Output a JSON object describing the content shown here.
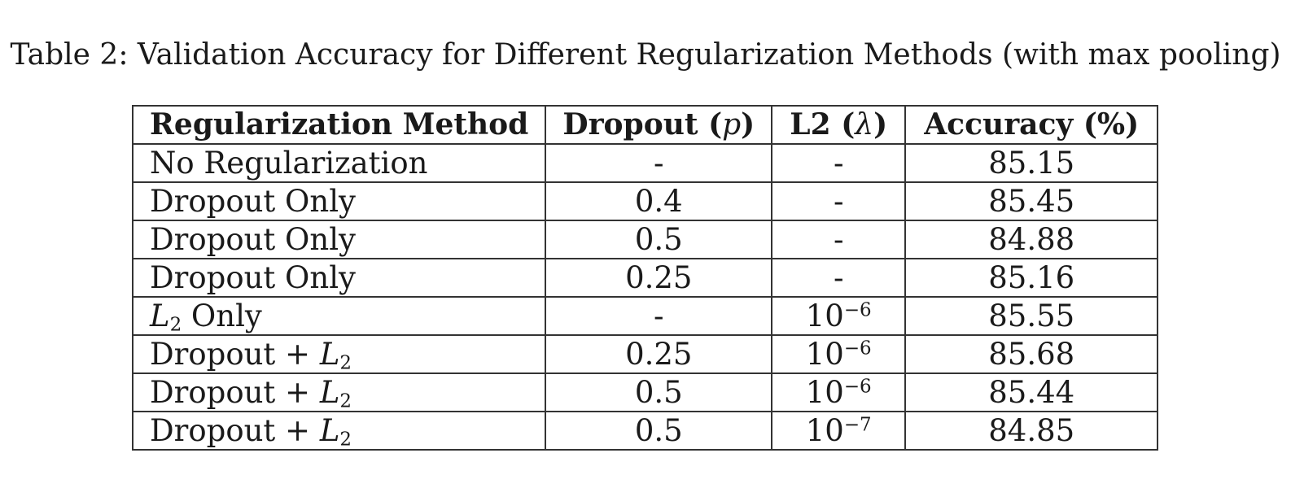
{
  "caption": "Table 2: Validation Accuracy for Different Regularization Methods (with max pooling)",
  "table": {
    "headers": {
      "method": "Regularization Method",
      "dropout_prefix": "Dropout (",
      "dropout_symbol": "p",
      "dropout_suffix": ")",
      "l2_prefix": "L2 (",
      "l2_symbol": "λ",
      "l2_suffix": ")",
      "accuracy": "Accuracy (%)"
    },
    "rows": [
      {
        "method": "No Regularization",
        "dropout": "-",
        "l2": "-",
        "accuracy": "85.15"
      },
      {
        "method": "Dropout Only",
        "dropout": "0.4",
        "l2": "-",
        "accuracy": "85.45"
      },
      {
        "method": "Dropout Only",
        "dropout": "0.5",
        "l2": "-",
        "accuracy": "84.88"
      },
      {
        "method": "Dropout Only",
        "dropout": "0.25",
        "l2": "-",
        "accuracy": "85.16"
      },
      {
        "method_var": "L",
        "method_sub": "2",
        "method_suffix": " Only",
        "dropout": "-",
        "l2_base": "10",
        "l2_exp": "−6",
        "accuracy": "85.55"
      },
      {
        "method_prefix": "Dropout + ",
        "method_var": "L",
        "method_sub": "2",
        "dropout": "0.25",
        "l2_base": "10",
        "l2_exp": "−6",
        "accuracy": "85.68"
      },
      {
        "method_prefix": "Dropout + ",
        "method_var": "L",
        "method_sub": "2",
        "dropout": "0.5",
        "l2_base": "10",
        "l2_exp": "−6",
        "accuracy": "85.44"
      },
      {
        "method_prefix": "Dropout + ",
        "method_var": "L",
        "method_sub": "2",
        "dropout": "0.5",
        "l2_base": "10",
        "l2_exp": "−7",
        "accuracy": "84.85"
      }
    ]
  }
}
